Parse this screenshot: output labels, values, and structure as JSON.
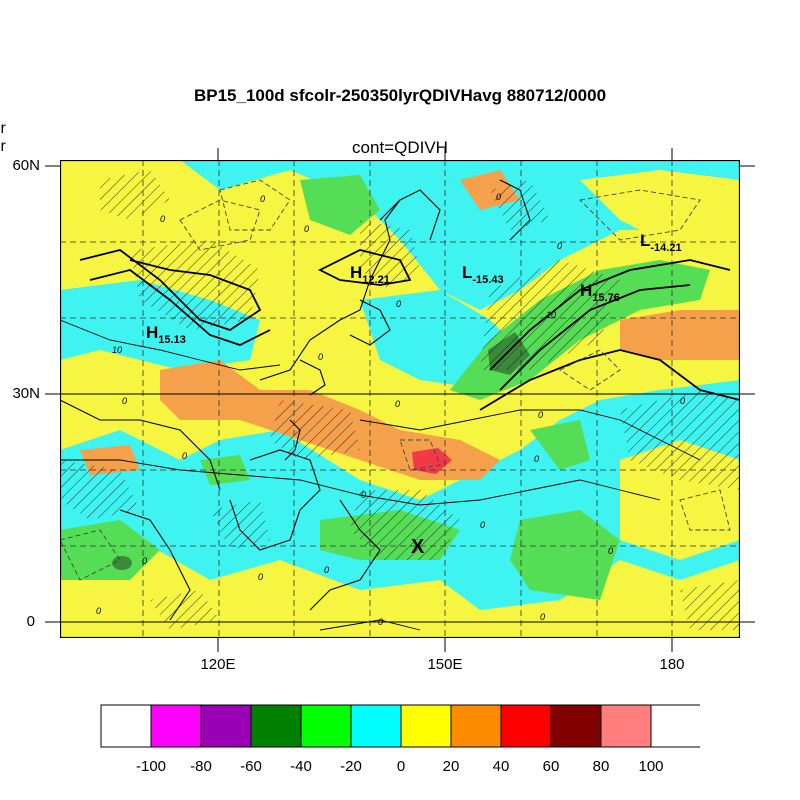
{
  "title": "BP15_100d sfcolr-250350lyrQDIVHavg  880712/0000",
  "subtitle": "cont=QDIVH",
  "left_cut_labels": [
    "olr",
    "olr"
  ],
  "y_axis": {
    "labels": [
      "60N",
      "30N",
      "0"
    ]
  },
  "x_axis": {
    "labels": [
      "120E",
      "150E",
      "180"
    ]
  },
  "pressure_labels": [
    {
      "type": "H",
      "value": "12.21"
    },
    {
      "type": "L",
      "value": "-15.43"
    },
    {
      "type": "L",
      "value": "-14.21"
    },
    {
      "type": "H",
      "value": "15.76"
    },
    {
      "type": "H",
      "value": "15.13"
    }
  ],
  "marker": "X",
  "contour_values": [
    "0",
    "10"
  ],
  "colorbar": {
    "labels": [
      "-100",
      "-80",
      "-60",
      "-40",
      "-20",
      "0",
      "20",
      "40",
      "60",
      "80",
      "100"
    ],
    "colors": [
      "#ffffff",
      "#ff00ff",
      "#9a00b4",
      "#008000",
      "#00ff00",
      "#00ffff",
      "#ffff00",
      "#ff8c00",
      "#ff0000",
      "#800000",
      "#ff7f7f",
      "#ffffff"
    ]
  },
  "field_colors": {
    "yellow": "#f5f542",
    "cyan": "#3ff3f0",
    "green": "#55dd55",
    "dark_green": "#3a8a3a",
    "orange": "#f5a04a",
    "red": "#f03a48"
  }
}
